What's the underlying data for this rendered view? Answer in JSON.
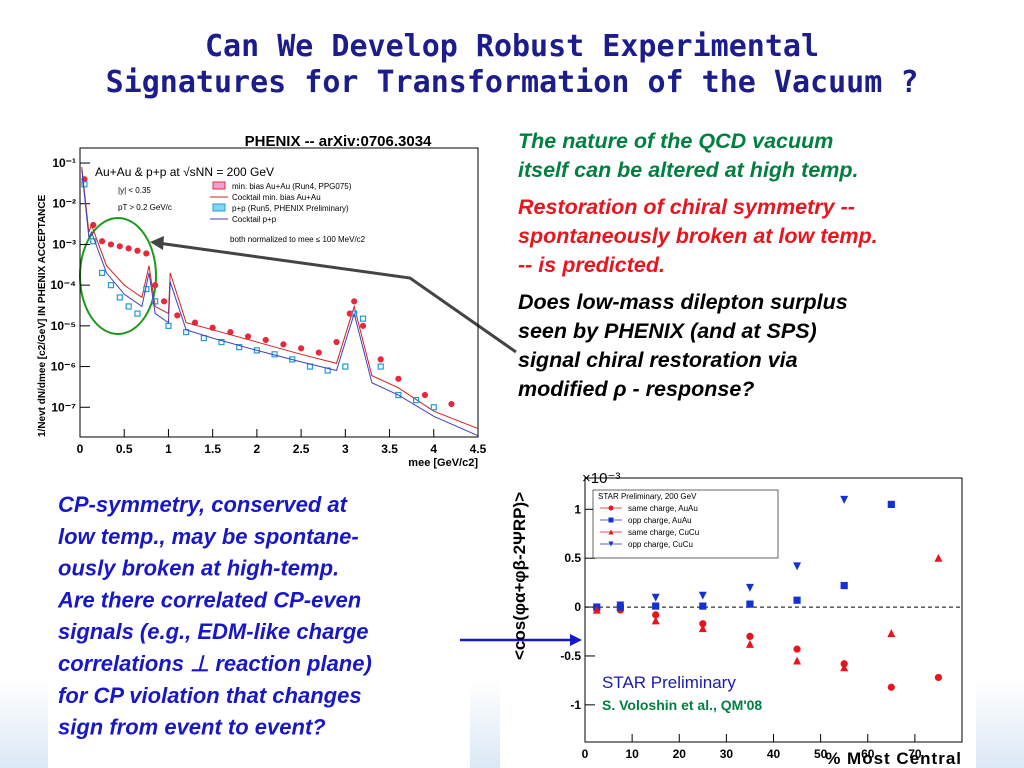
{
  "title": [
    "Can We Develop Robust Experimental",
    "Signatures for Transformation of the Vacuum ?"
  ],
  "paragraphs": [
    {
      "color": "#008040",
      "lines": [
        "The nature of the QCD vacuum",
        "itself can be altered at high temp."
      ]
    },
    {
      "color": "#e8141e",
      "lines": [
        "Restoration of chiral symmetry --",
        "spontaneously broken at low temp.",
        "-- is predicted."
      ]
    },
    {
      "color": "#000000",
      "lines": [
        "Does low-mass dilepton surplus",
        "seen by PHENIX (and at SPS)",
        "signal chiral restoration via",
        "modified ρ - response?"
      ]
    }
  ],
  "box": {
    "lines": [
      "CP-symmetry, conserved at",
      "low temp., may be spontane-",
      "ously broken at high-temp.",
      "Are there correlated CP-even",
      "signals (e.g., EDM-like charge",
      "correlations ⊥ reaction plane)",
      "for CP violation that changes",
      "sign from event to event?"
    ]
  },
  "chart_data": [
    {
      "type": "scatter",
      "title": "PHENIX -- arXiv:0706.3034",
      "xlabel": "mee [GeV/c2]",
      "ylabel": "1/Nevt dN/dmee [c2/GeV] IN PHENIX ACCEPTANCE",
      "annotations": [
        "Au+Au & p+p at √sNN = 200 GeV",
        "|y| < 0.35",
        "pT > 0.2 GeV/c",
        "both normalized to mee ≤ 100 MeV/c2"
      ],
      "log_y": true,
      "xlim": [
        0,
        4.5
      ],
      "xticks": [
        0,
        0.5,
        1,
        1.5,
        2,
        2.5,
        3,
        3.5,
        4,
        4.5
      ],
      "ylim": [
        1.86e-08,
        0.234
      ],
      "yticks": [
        {
          "value": 1e-07,
          "label": "10⁻⁷"
        },
        {
          "value": 1e-06,
          "label": "10⁻⁶"
        },
        {
          "value": 1e-05,
          "label": "10⁻⁵"
        },
        {
          "value": 0.0001,
          "label": "10⁻⁴"
        },
        {
          "value": 0.001,
          "label": "10⁻³"
        },
        {
          "value": 0.01,
          "label": "10⁻²"
        },
        {
          "value": 0.1,
          "label": "10⁻¹"
        }
      ],
      "series": [
        {
          "name": "min. bias Au+Au (Run4, PPG075)",
          "color": "#e8283c",
          "marker": "circle",
          "x": [
            0.05,
            0.15,
            0.25,
            0.35,
            0.45,
            0.55,
            0.65,
            0.75,
            0.85,
            0.95,
            1.1,
            1.3,
            1.5,
            1.7,
            1.9,
            2.1,
            2.3,
            2.5,
            2.7,
            2.9,
            3.05,
            3.1,
            3.2,
            3.4,
            3.6,
            3.9,
            4.2
          ],
          "values": [
            0.04,
            0.003,
            0.0012,
            0.001,
            0.0009,
            0.0008,
            0.0007,
            0.0006,
            0.0001,
            4e-05,
            1.8e-05,
            1.2e-05,
            9e-06,
            7e-06,
            5.5e-06,
            4.5e-06,
            3.5e-06,
            2.8e-06,
            2.2e-06,
            4e-06,
            2e-05,
            4e-05,
            1e-05,
            1.5e-06,
            5e-07,
            2e-07,
            1.2e-07
          ]
        },
        {
          "name": "Cocktail min. bias Au+Au",
          "color": "#d02020",
          "line": true,
          "x": [
            0.02,
            0.1,
            0.13,
            0.3,
            0.5,
            0.7,
            0.78,
            0.85,
            1.0,
            1.02,
            1.2,
            1.5,
            2,
            2.5,
            2.9,
            3.1,
            3.3,
            3.6,
            4,
            4.5
          ],
          "values": [
            0.08,
            0.002,
            0.003,
            0.0003,
            0.0001,
            5e-05,
            0.0003,
            3e-05,
            2e-05,
            0.0002,
            1.2e-05,
            8e-06,
            4e-06,
            2e-06,
            1.2e-06,
            3e-05,
            6e-07,
            3e-07,
            8e-08,
            3e-08
          ]
        },
        {
          "name": "p+p (Run5, PHENIX Preliminary)",
          "color": "#1f9bd6",
          "marker": "square",
          "x": [
            0.05,
            0.15,
            0.25,
            0.35,
            0.45,
            0.55,
            0.65,
            0.75,
            0.85,
            1.0,
            1.2,
            1.4,
            1.6,
            1.8,
            2.0,
            2.2,
            2.4,
            2.6,
            2.8,
            3.0,
            3.1,
            3.2,
            3.4,
            3.6,
            3.8,
            4.0
          ],
          "values": [
            0.03,
            0.0012,
            0.0002,
            0.0001,
            5e-05,
            3e-05,
            2e-05,
            8e-05,
            4e-05,
            1e-05,
            7e-06,
            5e-06,
            4e-06,
            3e-06,
            2.5e-06,
            2e-06,
            1.5e-06,
            1e-06,
            8e-07,
            1e-06,
            2e-05,
            1.5e-05,
            1e-06,
            2e-07,
            1.5e-07,
            1e-07
          ]
        },
        {
          "name": "Cocktail p+p",
          "color": "#4040c0",
          "line": true,
          "x": [
            0.02,
            0.1,
            0.13,
            0.3,
            0.5,
            0.7,
            0.78,
            0.85,
            1.0,
            1.02,
            1.2,
            1.5,
            2,
            2.5,
            2.9,
            3.1,
            3.3,
            3.6,
            4,
            4.5
          ],
          "values": [
            0.07,
            0.0015,
            0.002,
            0.0002,
            6e-05,
            3e-05,
            0.0002,
            2e-05,
            1.2e-05,
            0.00012,
            8e-06,
            5e-06,
            2.5e-06,
            1.3e-06,
            8e-07,
            2e-05,
            4e-07,
            2e-07,
            6e-08,
            2e-08
          ]
        }
      ]
    },
    {
      "type": "scatter",
      "xlabel": "% Most Central",
      "ylabel": "<cos(φα+φβ-2ΨRP)>",
      "multiplier": "×10⁻³",
      "annotations": [
        "STAR Preliminary",
        "S. Voloshin et al., QM'08"
      ],
      "legend_title": "STAR Preliminary, 200 GeV",
      "xlim": [
        0,
        80
      ],
      "xticks": [
        0,
        10,
        20,
        30,
        40,
        50,
        60,
        70
      ],
      "ylim": [
        -1.38,
        1.32
      ],
      "yticks": [
        -1,
        -0.5,
        0,
        0.5,
        1
      ],
      "series": [
        {
          "name": "same charge, AuAu",
          "color": "#e8141e",
          "marker": "circle",
          "x": [
            2.5,
            7.5,
            15,
            25,
            35,
            45,
            55,
            65,
            75
          ],
          "values": [
            -0.02,
            -0.03,
            -0.08,
            -0.17,
            -0.3,
            -0.43,
            -0.58,
            -0.82,
            -0.72
          ]
        },
        {
          "name": "opp charge, AuAu",
          "color": "#1432d2",
          "marker": "square",
          "x": [
            2.5,
            7.5,
            15,
            25,
            35,
            45,
            55,
            65
          ],
          "values": [
            0,
            0,
            0.01,
            0.01,
            0.03,
            0.07,
            0.22,
            1.05
          ]
        },
        {
          "name": "same charge, CuCu",
          "color": "#e8141e",
          "marker": "triangle-up",
          "x": [
            2.5,
            15,
            25,
            35,
            45,
            55,
            65,
            75
          ],
          "values": [
            -0.03,
            -0.14,
            -0.22,
            -0.38,
            -0.55,
            -0.62,
            -0.27,
            0.5
          ]
        },
        {
          "name": "opp charge, CuCu",
          "color": "#1432d2",
          "marker": "triangle-down",
          "x": [
            7.5,
            15,
            25,
            35,
            45,
            55
          ],
          "values": [
            0.02,
            0.1,
            0.12,
            0.2,
            0.42,
            1.1
          ]
        }
      ]
    }
  ]
}
